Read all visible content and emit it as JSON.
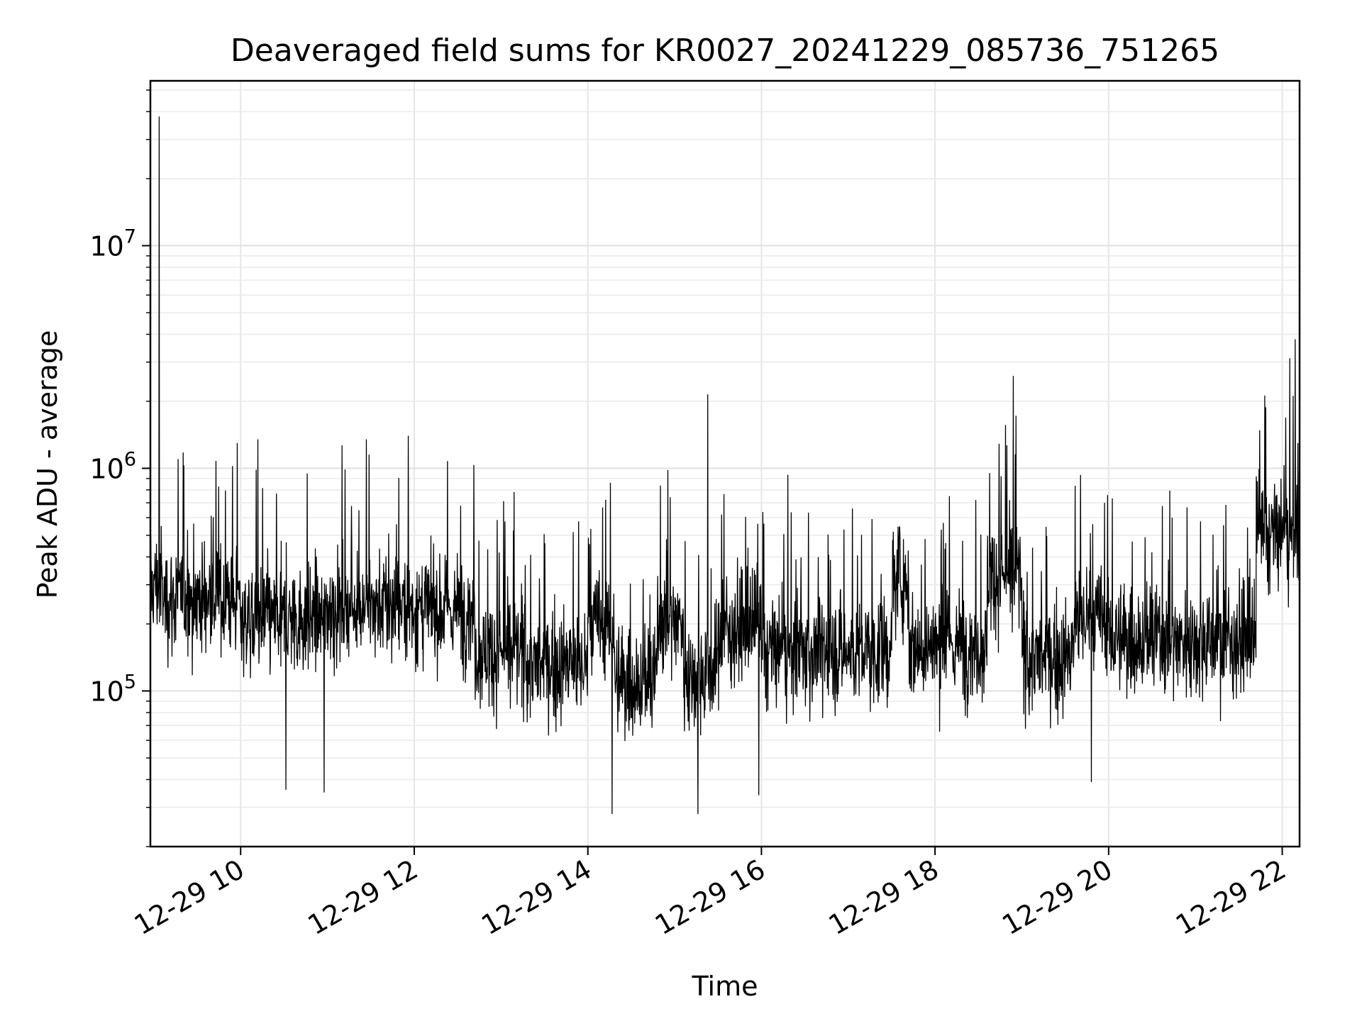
{
  "chart_data": {
    "type": "line",
    "title": "Deaveraged field sums for KR0027_20241229_085736_751265",
    "xlabel": "Time",
    "ylabel": "Peak ADU - average",
    "yscale": "log",
    "ylim": [
      20000,
      55000000
    ],
    "xlim_hours": [
      8.96,
      22.2
    ],
    "grid": true,
    "line_color": "#000000",
    "x_ticks": [
      {
        "hour": 10,
        "label": "12-29 10"
      },
      {
        "hour": 12,
        "label": "12-29 12"
      },
      {
        "hour": 14,
        "label": "12-29 14"
      },
      {
        "hour": 16,
        "label": "12-29 16"
      },
      {
        "hour": 18,
        "label": "12-29 18"
      },
      {
        "hour": 20,
        "label": "12-29 20"
      },
      {
        "hour": 22,
        "label": "12-29 22"
      }
    ],
    "y_ticks": [
      {
        "value": 100000,
        "base": "10",
        "exp": "5"
      },
      {
        "value": 1000000,
        "base": "10",
        "exp": "6"
      },
      {
        "value": 10000000,
        "base": "10",
        "exp": "7"
      }
    ],
    "series": [
      {
        "name": "Deaveraged field sum",
        "segments": [
          {
            "start": 8.96,
            "end": 9.1,
            "median": 300000
          },
          {
            "start": 9.1,
            "end": 10.0,
            "median": 260000
          },
          {
            "start": 10.0,
            "end": 11.0,
            "median": 210000
          },
          {
            "start": 11.0,
            "end": 12.0,
            "median": 240000
          },
          {
            "start": 12.0,
            "end": 12.7,
            "median": 230000
          },
          {
            "start": 12.7,
            "end": 13.3,
            "median": 150000
          },
          {
            "start": 13.3,
            "end": 14.0,
            "median": 130000
          },
          {
            "start": 14.0,
            "end": 14.3,
            "median": 200000
          },
          {
            "start": 14.3,
            "end": 14.8,
            "median": 110000
          },
          {
            "start": 14.8,
            "end": 15.1,
            "median": 210000
          },
          {
            "start": 15.1,
            "end": 15.5,
            "median": 120000
          },
          {
            "start": 15.5,
            "end": 16.0,
            "median": 190000
          },
          {
            "start": 16.0,
            "end": 17.5,
            "median": 150000
          },
          {
            "start": 17.5,
            "end": 17.7,
            "median": 320000
          },
          {
            "start": 17.7,
            "end": 18.6,
            "median": 160000
          },
          {
            "start": 18.6,
            "end": 19.0,
            "median": 330000
          },
          {
            "start": 19.0,
            "end": 19.6,
            "median": 140000
          },
          {
            "start": 19.6,
            "end": 20.0,
            "median": 210000
          },
          {
            "start": 20.0,
            "end": 21.7,
            "median": 170000
          },
          {
            "start": 21.7,
            "end": 22.2,
            "median": 500000
          }
        ],
        "spikes": [
          {
            "hour": 9.06,
            "value": 38000000
          },
          {
            "hour": 9.28,
            "value": 1100000
          },
          {
            "hour": 9.96,
            "value": 1300000
          },
          {
            "hour": 10.2,
            "value": 1350000
          },
          {
            "hour": 11.45,
            "value": 1350000
          },
          {
            "hour": 11.93,
            "value": 1400000
          },
          {
            "hour": 15.38,
            "value": 2150000
          },
          {
            "hour": 18.9,
            "value": 2600000
          },
          {
            "hour": 22.15,
            "value": 3800000
          },
          {
            "hour": 10.52,
            "value": 36000
          },
          {
            "hour": 10.96,
            "value": 35000
          },
          {
            "hour": 14.28,
            "value": 28000
          },
          {
            "hour": 15.27,
            "value": 28000
          },
          {
            "hour": 15.97,
            "value": 34000
          },
          {
            "hour": 19.8,
            "value": 39000
          }
        ]
      }
    ]
  }
}
